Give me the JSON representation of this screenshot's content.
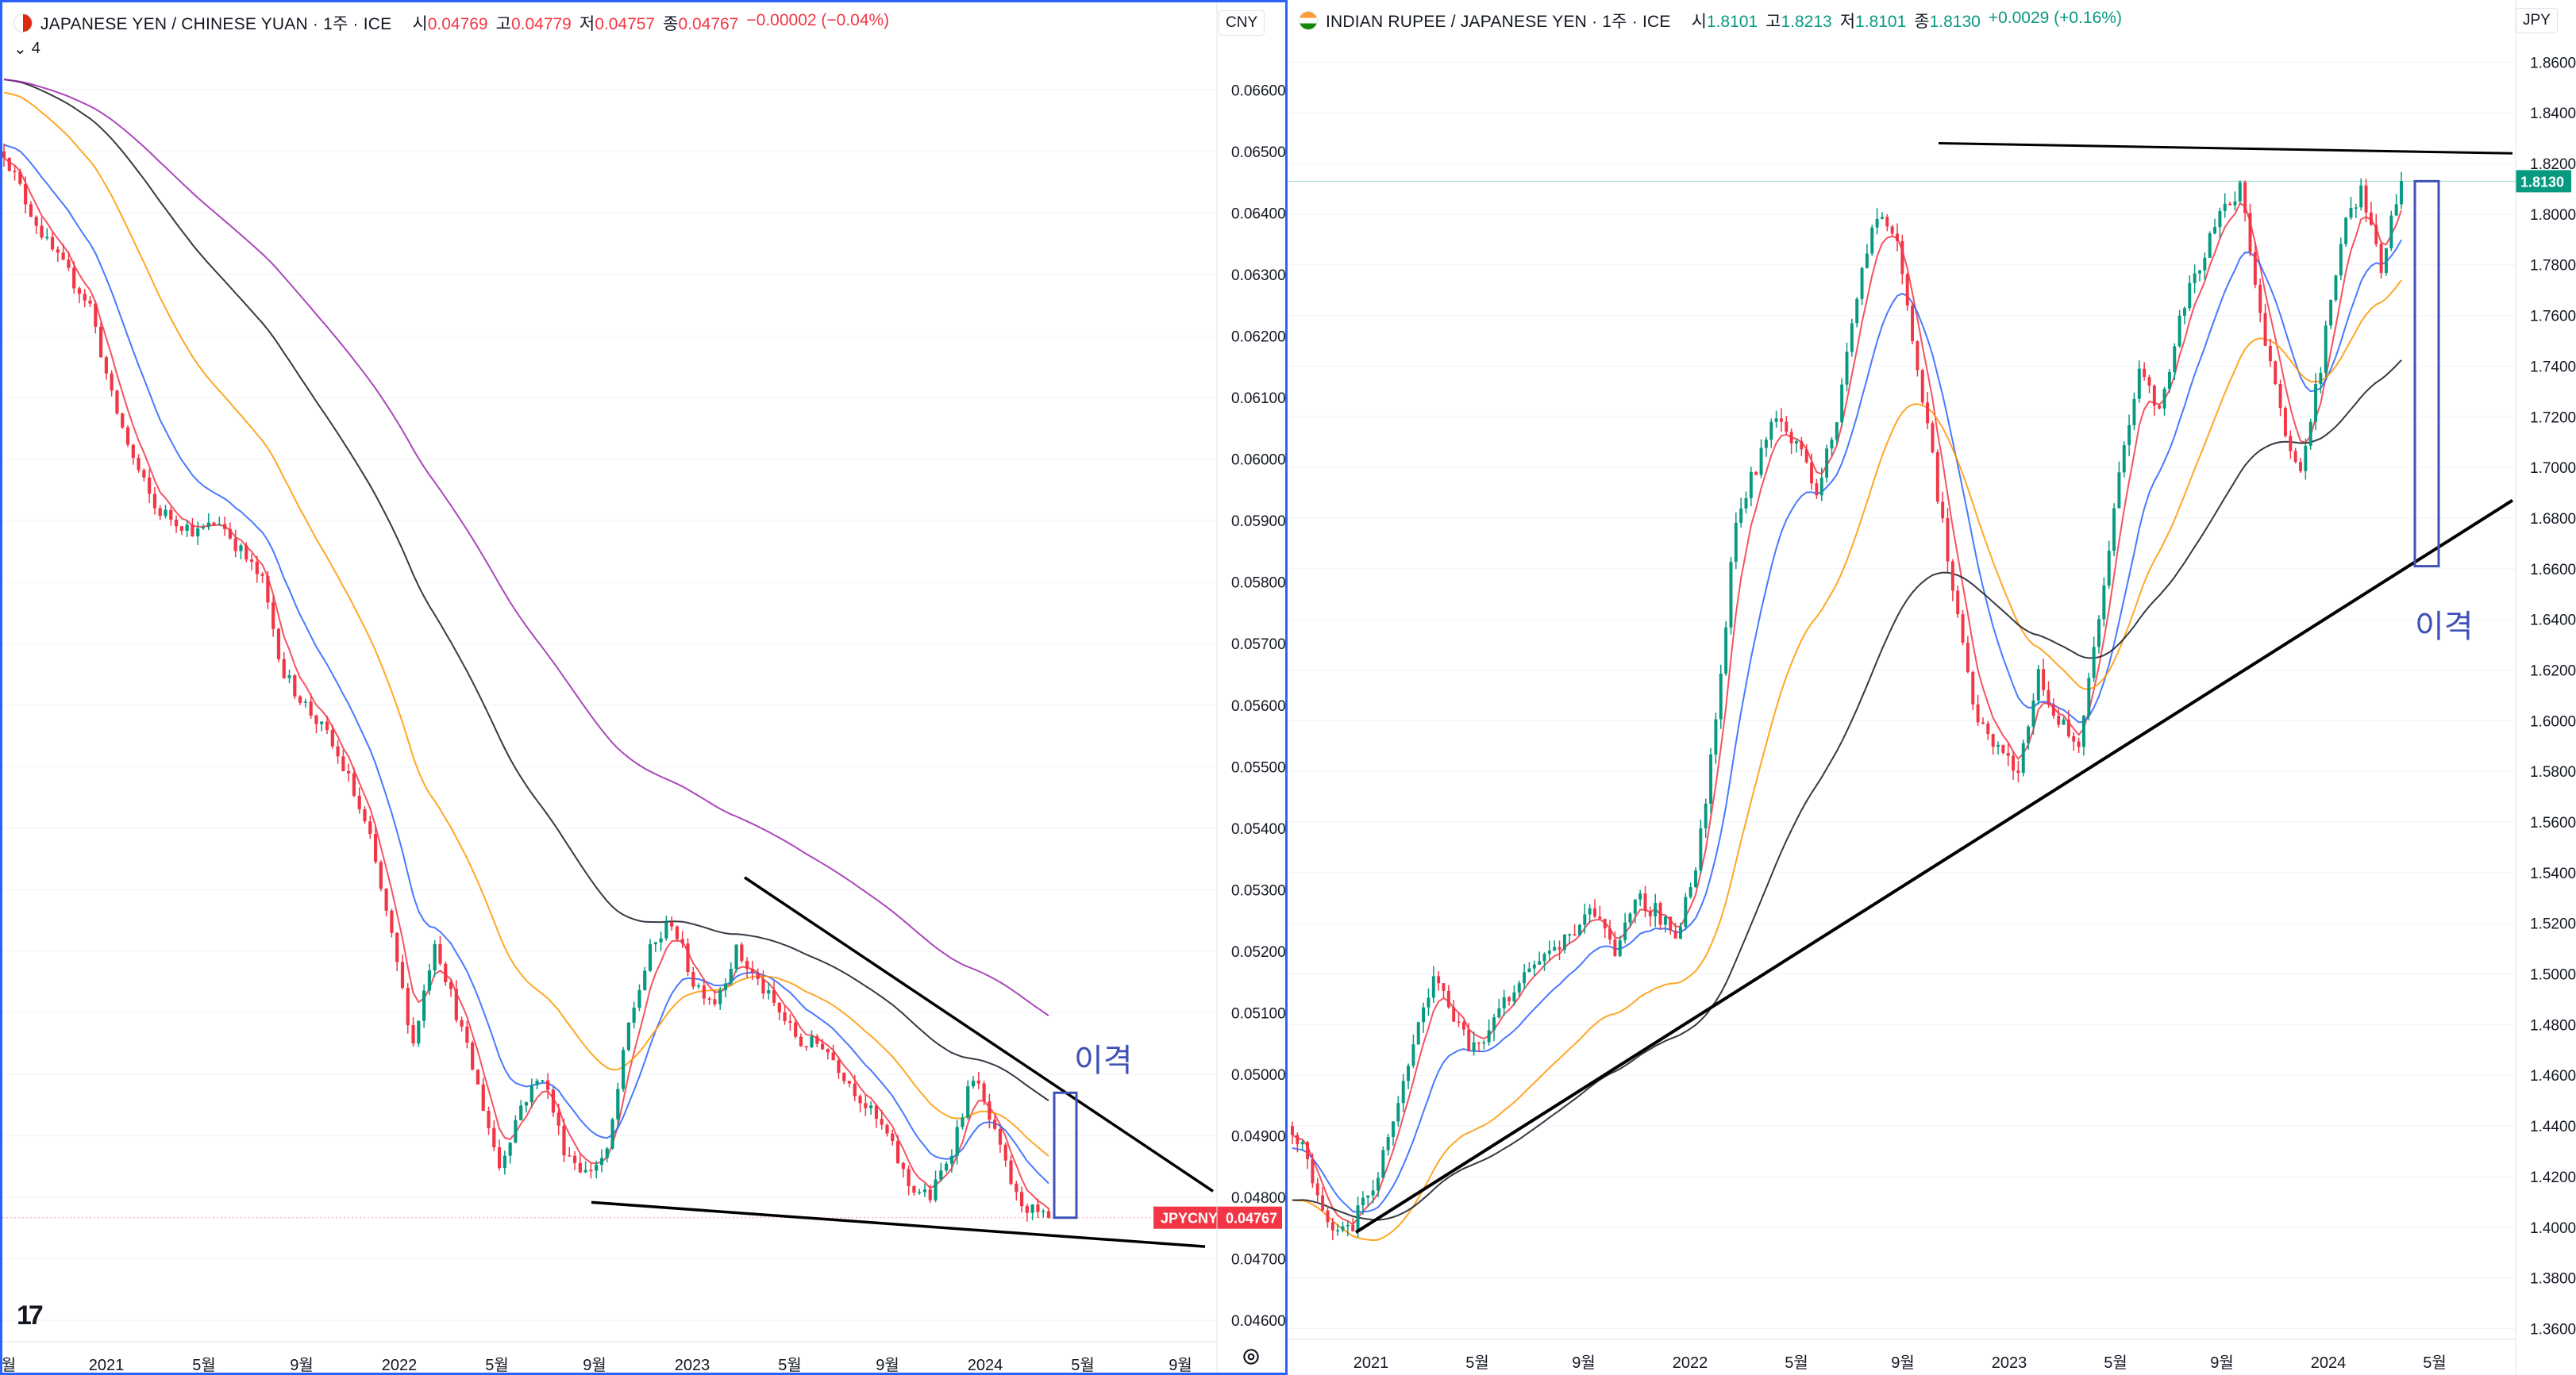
{
  "left": {
    "symbol": "JAPANESE YEN / CHINESE YUAN · 1주 · ICE",
    "ohlc": {
      "open_label": "시",
      "open": "0.04769",
      "high_label": "고",
      "high": "0.04779",
      "low_label": "저",
      "low": "0.04757",
      "close_label": "종",
      "close": "0.04767",
      "change": "−0.00002 (−0.04%)"
    },
    "currency_button": "CNY",
    "indicator_toggle": "4",
    "price_tag": {
      "ticker": "JPYCNY",
      "value": "0.04767"
    },
    "annotation": "이격",
    "colors": {
      "accent": "#2962ff",
      "up": "#089981",
      "down": "#f23645"
    }
  },
  "right": {
    "symbol": "INDIAN RUPEE / JAPANESE YEN · 1주 · ICE",
    "ohlc": {
      "open_label": "시",
      "open": "1.8101",
      "high_label": "고",
      "high": "1.8213",
      "low_label": "저",
      "low": "1.8101",
      "close_label": "종",
      "close": "1.8130",
      "change": "+0.0029 (+0.16%)"
    },
    "currency_button": "JPY",
    "price_tag": {
      "value": "1.8130"
    },
    "annotation": "이격"
  },
  "chart_data": [
    {
      "type": "candlestick",
      "title": "JAPANESE YEN / CHINESE YUAN · 1주 · ICE",
      "ylim": [
        0.0455,
        0.0667
      ],
      "y_ticks": [
        "0.06600",
        "0.06500",
        "0.06400",
        "0.06300",
        "0.06200",
        "0.06100",
        "0.06000",
        "0.05900",
        "0.05800",
        "0.05700",
        "0.05600",
        "0.05500",
        "0.05400",
        "0.05300",
        "0.05200",
        "0.05100",
        "0.05000",
        "0.04900",
        "0.04800",
        "0.04700",
        "0.04600"
      ],
      "x_ticks": [
        "월",
        "2021",
        "5월",
        "9월",
        "2022",
        "5월",
        "9월",
        "2023",
        "5월",
        "9월",
        "2024",
        "5월",
        "9월"
      ],
      "last": 0.04767,
      "path": [
        [
          0,
          0.065
        ],
        [
          4,
          0.0642
        ],
        [
          8,
          0.0635
        ],
        [
          12,
          0.063
        ],
        [
          16,
          0.0625
        ],
        [
          20,
          0.061
        ],
        [
          24,
          0.06
        ],
        [
          28,
          0.0592
        ],
        [
          32,
          0.059
        ],
        [
          36,
          0.0588
        ],
        [
          40,
          0.059
        ],
        [
          44,
          0.0585
        ],
        [
          48,
          0.058
        ],
        [
          52,
          0.0565
        ],
        [
          56,
          0.056
        ],
        [
          60,
          0.0555
        ],
        [
          64,
          0.0548
        ],
        [
          68,
          0.0538
        ],
        [
          72,
          0.0522
        ],
        [
          76,
          0.0505
        ],
        [
          80,
          0.0522
        ],
        [
          84,
          0.051
        ],
        [
          88,
          0.0498
        ],
        [
          92,
          0.0485
        ],
        [
          96,
          0.0495
        ],
        [
          100,
          0.05
        ],
        [
          104,
          0.0488
        ],
        [
          108,
          0.0484
        ],
        [
          112,
          0.0487
        ],
        [
          116,
          0.0508
        ],
        [
          120,
          0.052
        ],
        [
          124,
          0.0525
        ],
        [
          128,
          0.0515
        ],
        [
          132,
          0.0512
        ],
        [
          136,
          0.052
        ],
        [
          140,
          0.0515
        ],
        [
          144,
          0.051
        ],
        [
          148,
          0.0505
        ],
        [
          152,
          0.0505
        ],
        [
          156,
          0.05
        ],
        [
          160,
          0.0495
        ],
        [
          164,
          0.049
        ],
        [
          168,
          0.0482
        ],
        [
          172,
          0.048
        ],
        [
          176,
          0.0488
        ],
        [
          180,
          0.05
        ],
        [
          184,
          0.049
        ],
        [
          188,
          0.048
        ],
        [
          192,
          0.0477
        ],
        [
          194,
          0.04767
        ]
      ]
    },
    {
      "type": "candlestick",
      "title": "INDIAN RUPEE / JAPANESE YEN · 1주 · ICE",
      "ylim": [
        1.352,
        1.867
      ],
      "y_ticks": [
        "1.8600",
        "1.8400",
        "1.8200",
        "1.8000",
        "1.7800",
        "1.7600",
        "1.7400",
        "1.7200",
        "1.7000",
        "1.6800",
        "1.6600",
        "1.6400",
        "1.6200",
        "1.6000",
        "1.5800",
        "1.5600",
        "1.5400",
        "1.5200",
        "1.5000",
        "1.4800",
        "1.4600",
        "1.4400",
        "1.4200",
        "1.4000",
        "1.3800",
        "1.3600"
      ],
      "x_ticks": [
        "2021",
        "5월",
        "9월",
        "2022",
        "5월",
        "9월",
        "2023",
        "5월",
        "9월",
        "2024",
        "5월"
      ],
      "last": 1.813,
      "path": [
        [
          0,
          1.44
        ],
        [
          4,
          1.42
        ],
        [
          8,
          1.4
        ],
        [
          12,
          1.402
        ],
        [
          16,
          1.415
        ],
        [
          20,
          1.44
        ],
        [
          24,
          1.47
        ],
        [
          28,
          1.5
        ],
        [
          32,
          1.48
        ],
        [
          36,
          1.47
        ],
        [
          40,
          1.48
        ],
        [
          44,
          1.495
        ],
        [
          48,
          1.505
        ],
        [
          52,
          1.51
        ],
        [
          56,
          1.515
        ],
        [
          60,
          1.525
        ],
        [
          64,
          1.505
        ],
        [
          68,
          1.53
        ],
        [
          72,
          1.525
        ],
        [
          76,
          1.515
        ],
        [
          80,
          1.54
        ],
        [
          84,
          1.6
        ],
        [
          88,
          1.68
        ],
        [
          92,
          1.7
        ],
        [
          96,
          1.72
        ],
        [
          100,
          1.71
        ],
        [
          104,
          1.69
        ],
        [
          108,
          1.72
        ],
        [
          112,
          1.77
        ],
        [
          116,
          1.8
        ],
        [
          120,
          1.79
        ],
        [
          124,
          1.74
        ],
        [
          128,
          1.69
        ],
        [
          132,
          1.64
        ],
        [
          136,
          1.6
        ],
        [
          140,
          1.59
        ],
        [
          144,
          1.58
        ],
        [
          148,
          1.62
        ],
        [
          152,
          1.6
        ],
        [
          156,
          1.59
        ],
        [
          160,
          1.64
        ],
        [
          164,
          1.7
        ],
        [
          168,
          1.74
        ],
        [
          172,
          1.72
        ],
        [
          176,
          1.76
        ],
        [
          180,
          1.78
        ],
        [
          184,
          1.8
        ],
        [
          188,
          1.81
        ],
        [
          192,
          1.76
        ],
        [
          196,
          1.72
        ],
        [
          200,
          1.7
        ],
        [
          204,
          1.74
        ],
        [
          208,
          1.79
        ],
        [
          212,
          1.81
        ],
        [
          216,
          1.78
        ],
        [
          220,
          1.813
        ]
      ]
    }
  ]
}
